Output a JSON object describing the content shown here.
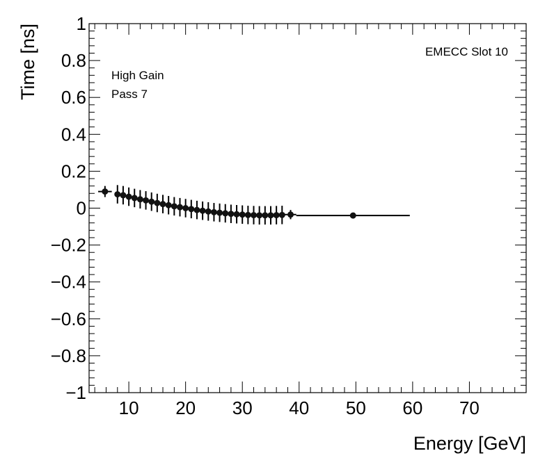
{
  "chart_data": {
    "type": "scatter",
    "xlabel": "Energy [GeV]",
    "ylabel": "Time [ns]",
    "xlim": [
      3,
      80
    ],
    "ylim": [
      -1,
      1
    ],
    "x_ticks": [
      10,
      20,
      30,
      40,
      50,
      60,
      70
    ],
    "x_tick_labels": [
      "10",
      "20",
      "30",
      "40",
      "50",
      "60",
      "70"
    ],
    "y_ticks": [
      -1,
      -0.8,
      -0.6,
      -0.4,
      -0.2,
      0,
      0.2,
      0.4,
      0.6,
      0.8,
      1
    ],
    "y_tick_labels": [
      "−1",
      "−0.8",
      "−0.6",
      "−0.4",
      "−0.2",
      "0",
      "0.2",
      "0.4",
      "0.6",
      "0.8",
      "1"
    ],
    "grid": false,
    "annotations": {
      "slot": "EMECC Slot 10",
      "gain": "High Gain",
      "pass": "Pass 7"
    },
    "series": [
      {
        "points": [
          {
            "x": 5.8,
            "y": 0.09,
            "xerr": 1.2,
            "yerr": 0.03
          },
          {
            "x": 8.0,
            "y": 0.075,
            "xerr": 0.5,
            "yerr": 0.05
          },
          {
            "x": 9.0,
            "y": 0.07,
            "xerr": 0.5,
            "yerr": 0.05
          },
          {
            "x": 10.0,
            "y": 0.062,
            "xerr": 0.5,
            "yerr": 0.05
          },
          {
            "x": 11.0,
            "y": 0.055,
            "xerr": 0.5,
            "yerr": 0.05
          },
          {
            "x": 12.0,
            "y": 0.048,
            "xerr": 0.5,
            "yerr": 0.05
          },
          {
            "x": 13.0,
            "y": 0.042,
            "xerr": 0.5,
            "yerr": 0.05
          },
          {
            "x": 14.0,
            "y": 0.035,
            "xerr": 0.5,
            "yerr": 0.05
          },
          {
            "x": 15.0,
            "y": 0.028,
            "xerr": 0.5,
            "yerr": 0.05
          },
          {
            "x": 16.0,
            "y": 0.022,
            "xerr": 0.5,
            "yerr": 0.05
          },
          {
            "x": 17.0,
            "y": 0.016,
            "xerr": 0.5,
            "yerr": 0.05
          },
          {
            "x": 18.0,
            "y": 0.01,
            "xerr": 0.5,
            "yerr": 0.05
          },
          {
            "x": 19.0,
            "y": 0.005,
            "xerr": 0.5,
            "yerr": 0.05
          },
          {
            "x": 20.0,
            "y": 0.0,
            "xerr": 0.5,
            "yerr": 0.05
          },
          {
            "x": 21.0,
            "y": -0.005,
            "xerr": 0.5,
            "yerr": 0.05
          },
          {
            "x": 22.0,
            "y": -0.01,
            "xerr": 0.5,
            "yerr": 0.05
          },
          {
            "x": 23.0,
            "y": -0.014,
            "xerr": 0.5,
            "yerr": 0.05
          },
          {
            "x": 24.0,
            "y": -0.018,
            "xerr": 0.5,
            "yerr": 0.05
          },
          {
            "x": 25.0,
            "y": -0.022,
            "xerr": 0.5,
            "yerr": 0.05
          },
          {
            "x": 26.0,
            "y": -0.025,
            "xerr": 0.5,
            "yerr": 0.05
          },
          {
            "x": 27.0,
            "y": -0.028,
            "xerr": 0.5,
            "yerr": 0.05
          },
          {
            "x": 28.0,
            "y": -0.031,
            "xerr": 0.5,
            "yerr": 0.05
          },
          {
            "x": 29.0,
            "y": -0.033,
            "xerr": 0.5,
            "yerr": 0.05
          },
          {
            "x": 30.0,
            "y": -0.035,
            "xerr": 0.5,
            "yerr": 0.05
          },
          {
            "x": 31.0,
            "y": -0.037,
            "xerr": 0.5,
            "yerr": 0.05
          },
          {
            "x": 32.0,
            "y": -0.038,
            "xerr": 0.5,
            "yerr": 0.05
          },
          {
            "x": 33.0,
            "y": -0.039,
            "xerr": 0.5,
            "yerr": 0.05
          },
          {
            "x": 34.0,
            "y": -0.039,
            "xerr": 0.5,
            "yerr": 0.05
          },
          {
            "x": 35.0,
            "y": -0.039,
            "xerr": 0.5,
            "yerr": 0.05
          },
          {
            "x": 36.0,
            "y": -0.038,
            "xerr": 0.5,
            "yerr": 0.05
          },
          {
            "x": 37.0,
            "y": -0.037,
            "xerr": 0.5,
            "yerr": 0.05
          },
          {
            "x": 38.5,
            "y": -0.035,
            "xerr": 1.0,
            "yerr": 0.025
          },
          {
            "x": 49.5,
            "y": -0.04,
            "xerr": 10.0,
            "yerr": 0.015
          }
        ]
      }
    ]
  }
}
